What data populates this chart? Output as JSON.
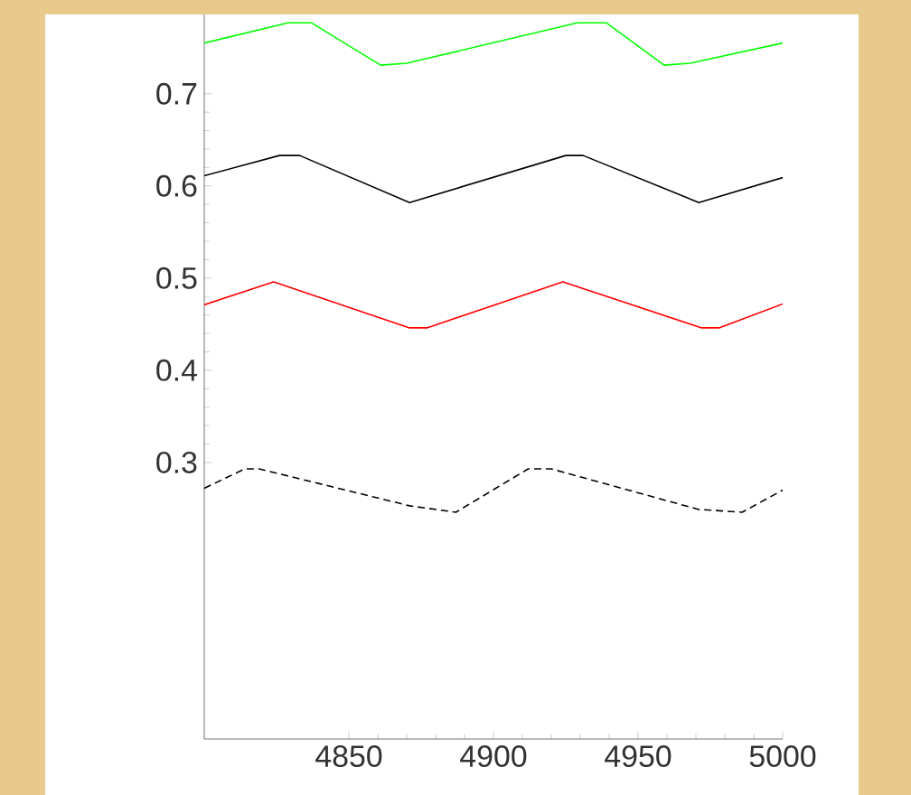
{
  "chart_data": {
    "type": "line",
    "xlim": [
      4800,
      5000
    ],
    "ylim": [
      0,
      0.786
    ],
    "xticks": [
      4850,
      4900,
      4950,
      5000
    ],
    "yticks": [
      0.3,
      0.4,
      0.5,
      0.6,
      0.7
    ],
    "grid": false,
    "marker": "none",
    "series": [
      {
        "color": "#00ff00",
        "line_style": "solid",
        "x": [
          4800,
          4829,
          4837,
          4861,
          4870,
          4929,
          4939,
          4959,
          4968,
          5000
        ],
        "values": [
          0.755,
          0.777,
          0.777,
          0.731,
          0.733,
          0.777,
          0.777,
          0.731,
          0.733,
          0.755
        ]
      },
      {
        "color": "#000000",
        "line_style": "solid",
        "x": [
          4800,
          4826,
          4833,
          4871,
          4925,
          4931,
          4971,
          5000
        ],
        "values": [
          0.611,
          0.633,
          0.633,
          0.582,
          0.633,
          0.633,
          0.582,
          0.609
        ]
      },
      {
        "color": "#ff0000",
        "line_style": "solid",
        "x": [
          4800,
          4824,
          4871,
          4877,
          4924,
          4972,
          4978,
          5000
        ],
        "values": [
          0.471,
          0.496,
          0.446,
          0.446,
          0.496,
          0.446,
          0.446,
          0.472
        ]
      },
      {
        "color": "#000000",
        "line_style": "dashed",
        "x": [
          4800,
          4814,
          4819,
          4871,
          4887,
          4912,
          4920,
          4971,
          4986,
          5000
        ],
        "values": [
          0.272,
          0.293,
          0.293,
          0.253,
          0.246,
          0.293,
          0.293,
          0.249,
          0.246,
          0.27
        ]
      }
    ]
  }
}
